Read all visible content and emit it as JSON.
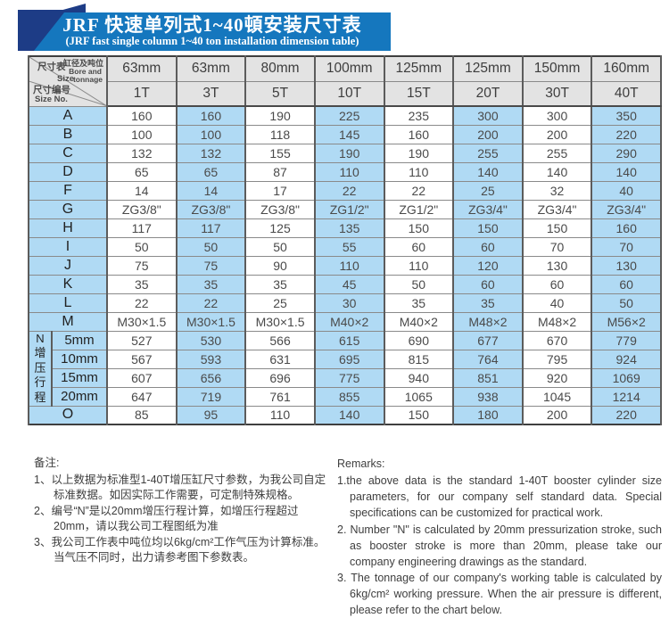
{
  "banner": {
    "title_cn": "JRF 快速单列式1~40頓安装尺寸表",
    "title_en": "(JRF fast single column 1~40 ton installation dimension table)"
  },
  "colors": {
    "ribbon_blue": "#1577be",
    "navy": "#1d3c86",
    "cell_blue": "#b0daf4",
    "header_gray": "#e3e3e3"
  },
  "table": {
    "corner": {
      "size_cn": "尺寸表",
      "size_en": "Size",
      "bore_cn": "缸径及吨位",
      "bore_en_1": "Bore and",
      "bore_en_2": "tonnage",
      "sizeno_cn": "尺寸编号",
      "sizeno_en": "Size No."
    },
    "bores": [
      "63mm",
      "63mm",
      "80mm",
      "100mm",
      "125mm",
      "125mm",
      "150mm",
      "160mm"
    ],
    "tons": [
      "1T",
      "3T",
      "5T",
      "10T",
      "15T",
      "20T",
      "30T",
      "40T"
    ],
    "rows": [
      {
        "label": "A",
        "values": [
          "160",
          "160",
          "190",
          "225",
          "235",
          "300",
          "300",
          "350"
        ]
      },
      {
        "label": "B",
        "values": [
          "100",
          "100",
          "118",
          "145",
          "160",
          "200",
          "200",
          "220"
        ]
      },
      {
        "label": "C",
        "values": [
          "132",
          "132",
          "155",
          "190",
          "190",
          "255",
          "255",
          "290"
        ]
      },
      {
        "label": "D",
        "values": [
          "65",
          "65",
          "87",
          "110",
          "110",
          "140",
          "140",
          "140"
        ]
      },
      {
        "label": "F",
        "values": [
          "14",
          "14",
          "17",
          "22",
          "22",
          "25",
          "32",
          "40"
        ]
      },
      {
        "label": "G",
        "values": [
          "ZG3/8\"",
          "ZG3/8\"",
          "ZG3/8\"",
          "ZG1/2\"",
          "ZG1/2\"",
          "ZG3/4\"",
          "ZG3/4\"",
          "ZG3/4\""
        ]
      },
      {
        "label": "H",
        "values": [
          "117",
          "117",
          "125",
          "135",
          "150",
          "150",
          "150",
          "160"
        ]
      },
      {
        "label": "I",
        "values": [
          "50",
          "50",
          "50",
          "55",
          "60",
          "60",
          "70",
          "70"
        ]
      },
      {
        "label": "J",
        "values": [
          "75",
          "75",
          "90",
          "110",
          "110",
          "120",
          "130",
          "130"
        ]
      },
      {
        "label": "K",
        "values": [
          "35",
          "35",
          "35",
          "45",
          "50",
          "60",
          "60",
          "60"
        ]
      },
      {
        "label": "L",
        "values": [
          "22",
          "22",
          "25",
          "30",
          "35",
          "35",
          "40",
          "50"
        ]
      },
      {
        "label": "M",
        "values": [
          "M30×1.5",
          "M30×1.5",
          "M30×1.5",
          "M40×2",
          "M40×2",
          "M48×2",
          "M48×2",
          "M56×2"
        ]
      }
    ],
    "n_section": {
      "vertical_label": "N增压行程",
      "rows": [
        {
          "label": "5mm",
          "values": [
            "527",
            "530",
            "566",
            "615",
            "690",
            "677",
            "670",
            "779"
          ]
        },
        {
          "label": "10mm",
          "values": [
            "567",
            "593",
            "631",
            "695",
            "815",
            "764",
            "795",
            "924"
          ]
        },
        {
          "label": "15mm",
          "values": [
            "607",
            "656",
            "696",
            "775",
            "940",
            "851",
            "920",
            "1069"
          ]
        },
        {
          "label": "20mm",
          "values": [
            "647",
            "719",
            "761",
            "855",
            "1065",
            "938",
            "1045",
            "1214"
          ]
        }
      ]
    },
    "row_o": {
      "label": "O",
      "values": [
        "85",
        "95",
        "110",
        "140",
        "150",
        "180",
        "200",
        "220"
      ]
    }
  },
  "notes_cn": {
    "heading": "备注:",
    "items": [
      "1、以上数据为标准型1-40T增压缸尺寸参数，为我公司自定标准数据。如因实际工作需要，可定制特殊规格。",
      "2、编号“N”是以20mm增压行程计算，如增压行程超过20mm，请以我公司工程图纸为准",
      "3、我公司工作表中吨位均以6kg/cm²工作气压为计算标准。当气压不同时，出力请参考图下参数表。"
    ]
  },
  "notes_en": {
    "heading": "Remarks:",
    "items": [
      "1.the above data is the standard 1-40T booster cylinder size parameters, for our company self standard data. Special specifications can be customized for practical work.",
      "2. Number \"N\" is calculated by 20mm pressurization stroke, such as booster stroke is more than 20mm, please take our company engineering drawings as the standard.",
      "3. The tonnage of our company's working table is calculated by 6kg/cm² working pressure. When the air pressure is different, please refer to the chart below."
    ]
  }
}
